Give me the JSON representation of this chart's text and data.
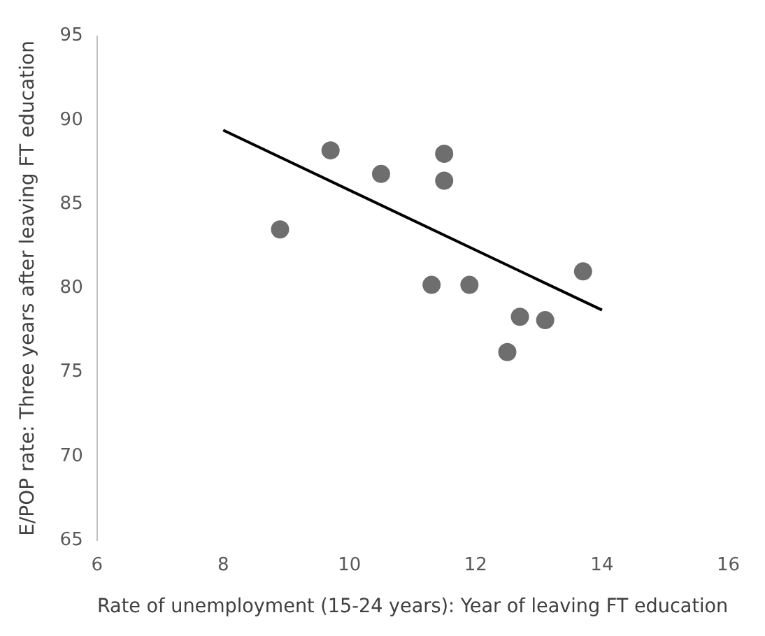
{
  "chart_data": {
    "type": "scatter",
    "xlabel": "Rate of unemployment (15-24 years): Year of leaving FT education",
    "ylabel": "E/POP rate: Three years after leaving FT education",
    "x": [
      8.9,
      9.7,
      10.5,
      11.5,
      11.5,
      11.3,
      11.9,
      13.7,
      12.7,
      13.1,
      12.5
    ],
    "series": [
      {
        "color": "#6e6e6e",
        "marker": "circle",
        "values": [
          83.5,
          88.2,
          86.8,
          88.0,
          86.4,
          80.2,
          80.2,
          81.0,
          78.3,
          78.1,
          76.2
        ]
      },
      {
        "type": "line",
        "color": "#000000",
        "x": [
          8,
          14
        ],
        "values": [
          89.4,
          78.7
        ]
      }
    ],
    "xlim": [
      6,
      16
    ],
    "xticks": [
      6,
      8,
      10,
      12,
      14,
      16
    ],
    "ylim": [
      65,
      95
    ],
    "yticks": [
      65,
      70,
      75,
      80,
      85,
      90,
      95
    ],
    "grid": false,
    "legend": false
  }
}
